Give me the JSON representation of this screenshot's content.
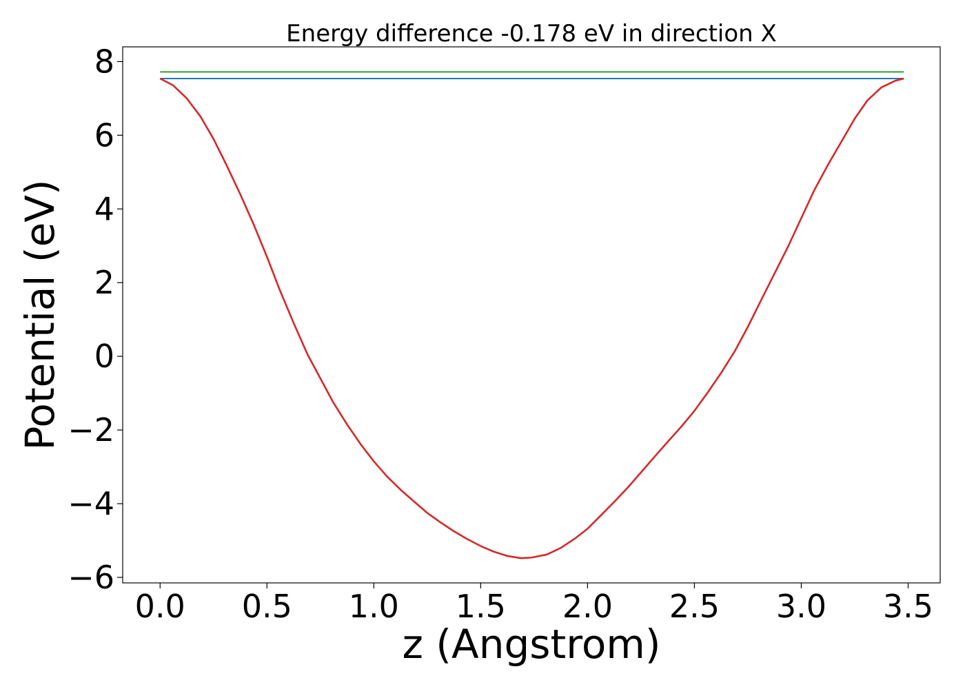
{
  "chart_data": {
    "type": "line",
    "title": "Energy difference -0.178 eV in direction X",
    "xlabel": "z (Angstrom)",
    "ylabel": "Potential (eV)",
    "xlim": [
      -0.175,
      3.65
    ],
    "ylim": [
      -6.15,
      8.4
    ],
    "xticks": [
      0.0,
      0.5,
      1.0,
      1.5,
      2.0,
      2.5,
      3.0,
      3.5
    ],
    "xtick_labels": [
      "0.0",
      "0.5",
      "1.0",
      "1.5",
      "2.0",
      "2.5",
      "3.0",
      "3.5"
    ],
    "yticks": [
      -6,
      -4,
      -2,
      0,
      2,
      4,
      6,
      8
    ],
    "ytick_labels": [
      "−6",
      "−4",
      "−2",
      "0",
      "2",
      "4",
      "6",
      "8"
    ],
    "grid": false,
    "series": [
      {
        "color": "#2ca02c",
        "x": [
          0.0,
          3.48
        ],
        "y": [
          7.72,
          7.72
        ]
      },
      {
        "color": "#1f77b4",
        "x": [
          0.0,
          3.48
        ],
        "y": [
          7.54,
          7.54
        ]
      },
      {
        "color": "#d62728",
        "x": [
          0.0,
          0.06,
          0.125,
          0.19,
          0.25,
          0.31,
          0.375,
          0.44,
          0.5,
          0.56,
          0.625,
          0.69,
          0.75,
          0.81,
          0.875,
          0.94,
          1.0,
          1.06,
          1.125,
          1.19,
          1.25,
          1.31,
          1.375,
          1.44,
          1.5,
          1.56,
          1.625,
          1.69,
          1.74,
          1.81,
          1.875,
          1.94,
          2.0,
          2.06,
          2.125,
          2.19,
          2.25,
          2.31,
          2.375,
          2.44,
          2.5,
          2.56,
          2.625,
          2.69,
          2.75,
          2.81,
          2.875,
          2.94,
          3.0,
          3.06,
          3.125,
          3.19,
          3.25,
          3.31,
          3.375,
          3.44,
          3.48
        ],
        "y": [
          7.54,
          7.36,
          7.0,
          6.5,
          5.9,
          5.2,
          4.4,
          3.55,
          2.7,
          1.8,
          0.9,
          0.05,
          -0.6,
          -1.25,
          -1.85,
          -2.4,
          -2.85,
          -3.25,
          -3.62,
          -3.95,
          -4.25,
          -4.5,
          -4.75,
          -4.97,
          -5.15,
          -5.3,
          -5.42,
          -5.48,
          -5.46,
          -5.38,
          -5.2,
          -4.95,
          -4.68,
          -4.33,
          -3.95,
          -3.55,
          -3.15,
          -2.75,
          -2.32,
          -1.9,
          -1.48,
          -1.0,
          -0.45,
          0.15,
          0.8,
          1.5,
          2.25,
          3.0,
          3.75,
          4.5,
          5.2,
          5.85,
          6.45,
          6.95,
          7.3,
          7.48,
          7.54
        ]
      }
    ]
  }
}
